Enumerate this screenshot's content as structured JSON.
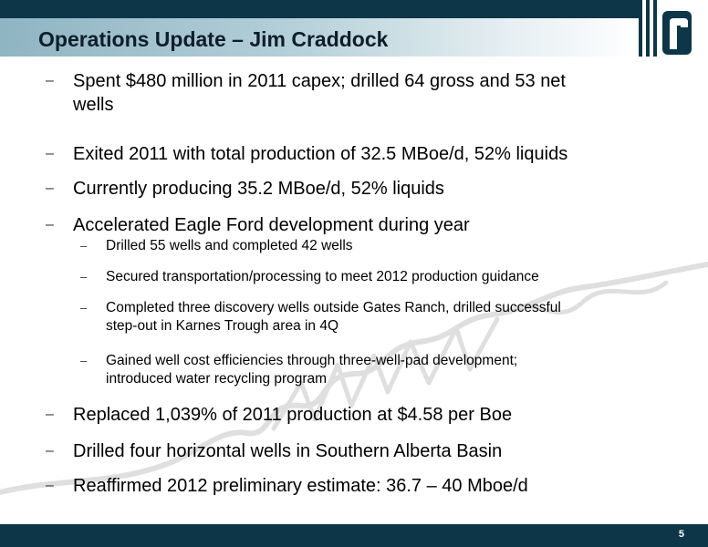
{
  "slide": {
    "title": "Operations Update – Jim Craddock",
    "page_number": "5",
    "bullet_marker": "–"
  },
  "bullets": [
    {
      "level": 1,
      "lines": [
        "Spent $480 million in 2011 capex; drilled 64 gross and 53 net",
        "wells"
      ]
    },
    {
      "level": 1,
      "lines": [
        "Exited 2011 with total production of 32.5 MBoe/d, 52% liquids"
      ]
    },
    {
      "level": 1,
      "lines": [
        "Currently producing 35.2 MBoe/d, 52% liquids"
      ]
    },
    {
      "level": 1,
      "lines": [
        "Accelerated Eagle Ford development during year"
      ]
    },
    {
      "level": 2,
      "lines": [
        "Drilled 55 wells and completed 42 wells"
      ]
    },
    {
      "level": 2,
      "lines": [
        "Secured transportation/processing to meet 2012 production guidance"
      ]
    },
    {
      "level": 2,
      "lines": [
        "Completed three discovery wells outside Gates Ranch, drilled successful",
        "step-out in Karnes Trough area in 4Q"
      ]
    },
    {
      "level": 2,
      "lines": [
        "Gained well cost efficiencies through three-well-pad development;",
        "introduced water recycling program"
      ]
    },
    {
      "level": 1,
      "lines": [
        "Replaced 1,039% of 2011 production at $4.58 per Boe"
      ]
    },
    {
      "level": 1,
      "lines": [
        "Drilled four horizontal wells in Southern Alberta Basin"
      ]
    },
    {
      "level": 1,
      "lines": [
        "Reaffirmed 2012 preliminary estimate:  36.7 – 40 Mboe/d"
      ]
    }
  ],
  "colors": {
    "brand_navy": "#0d3649",
    "title_text": "#0d1e2a"
  },
  "icons": {
    "logo": "company-logo-r-icon",
    "watermark": "signature-watermark"
  }
}
